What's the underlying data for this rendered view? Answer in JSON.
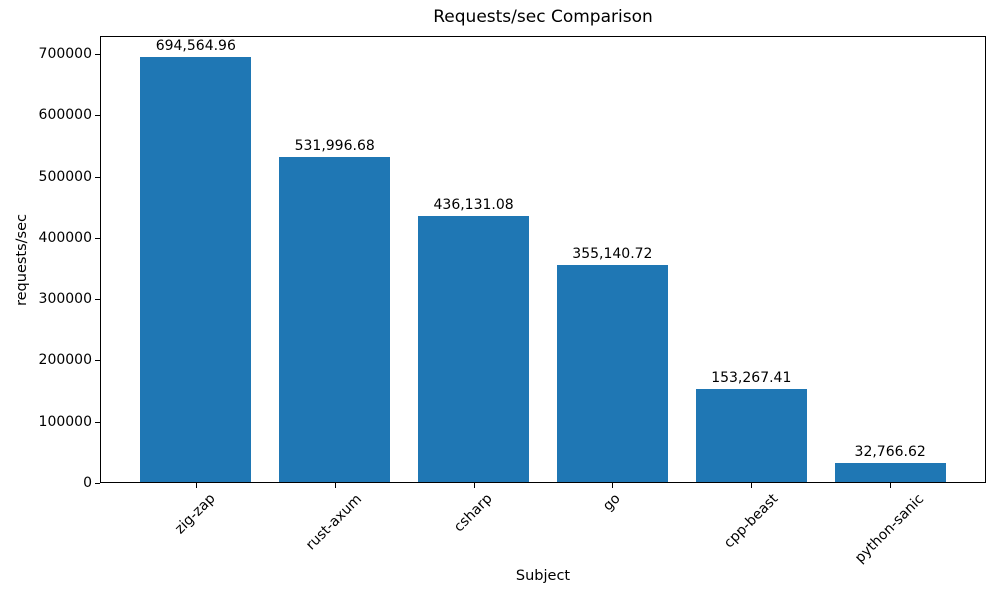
{
  "chart_data": {
    "type": "bar",
    "title": "Requests/sec Comparison",
    "xlabel": "Subject",
    "ylabel": "requests/sec",
    "categories": [
      "zig-zap",
      "rust-axum",
      "csharp",
      "go",
      "cpp-beast",
      "python-sanic"
    ],
    "values": [
      694564.96,
      531996.68,
      436131.08,
      355140.72,
      153267.41,
      32766.62
    ],
    "value_labels": [
      "694,564.96",
      "531,996.68",
      "436,131.08",
      "355,140.72",
      "153,267.41",
      "32,766.62"
    ],
    "ytick_values": [
      0,
      100000,
      200000,
      300000,
      400000,
      500000,
      600000,
      700000
    ],
    "ytick_labels": [
      "0",
      "100000",
      "200000",
      "300000",
      "400000",
      "500000",
      "600000",
      "700000"
    ],
    "ylim": [
      0,
      729293
    ],
    "bar_color": "#1f77b4",
    "background_color": "#ffffff",
    "text_color": "#000000",
    "grid": false,
    "legend": null,
    "xtick_rotation_deg": 45,
    "bar_width_fraction": 0.8
  }
}
